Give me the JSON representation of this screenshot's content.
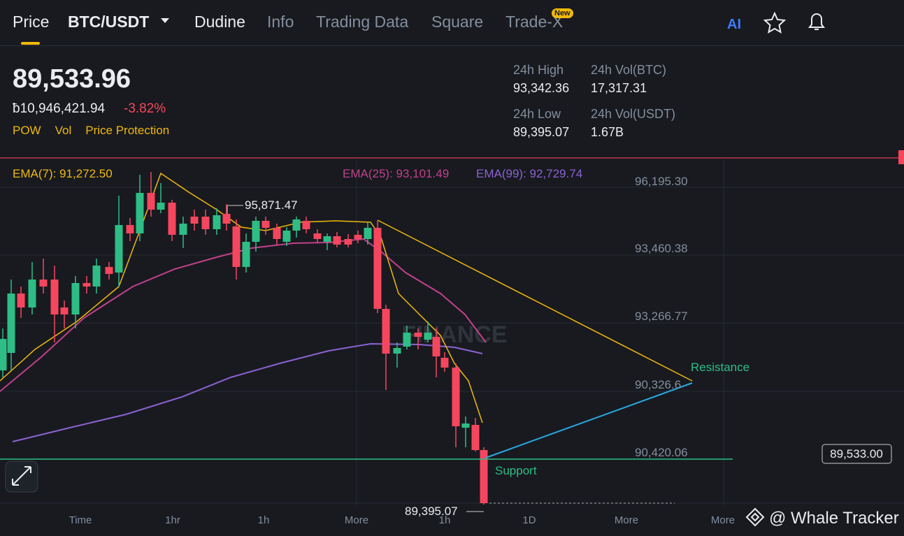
{
  "nav": {
    "tabs": [
      "Price",
      "BTC/USDT",
      "Dudine",
      "Info",
      "Trading Data",
      "Square",
      "Trade-X"
    ],
    "badge": "New",
    "ai": "AI"
  },
  "ticker": {
    "price": "89,533.96",
    "fiat": "ƀ10,946,421.94",
    "change": "-3.82%",
    "tags": [
      "POW",
      "Vol",
      "Price Protection"
    ]
  },
  "stats": [
    {
      "label": "24h High",
      "value": "93,342.36"
    },
    {
      "label": "24h Vol(BTC)",
      "value": "17,317.31"
    },
    {
      "label": "24h Low",
      "value": "89,395.07"
    },
    {
      "label": "24h Vol(USDT)",
      "value": "1.67B"
    }
  ],
  "chart": {
    "ema": [
      "EMA(7): 91,272.50",
      "EMA(25): 93,101.49",
      "EMA(99): 92,729.74"
    ],
    "price_axis": [
      "96,195.30",
      "93,460.38",
      "93,266.77",
      "90,326.6",
      "90,420.06"
    ],
    "high_label": "95,871.47",
    "low_label": "89,395.07",
    "current_price": "89,533.00",
    "resistance": "Resistance",
    "support": "Support",
    "time_axis": [
      "Time",
      "1hr",
      "1h",
      "More",
      "1h",
      "1D",
      "More",
      "More"
    ],
    "watermark": "FINANCE"
  },
  "footer": {
    "credit": "@ Whale Tracker"
  }
}
